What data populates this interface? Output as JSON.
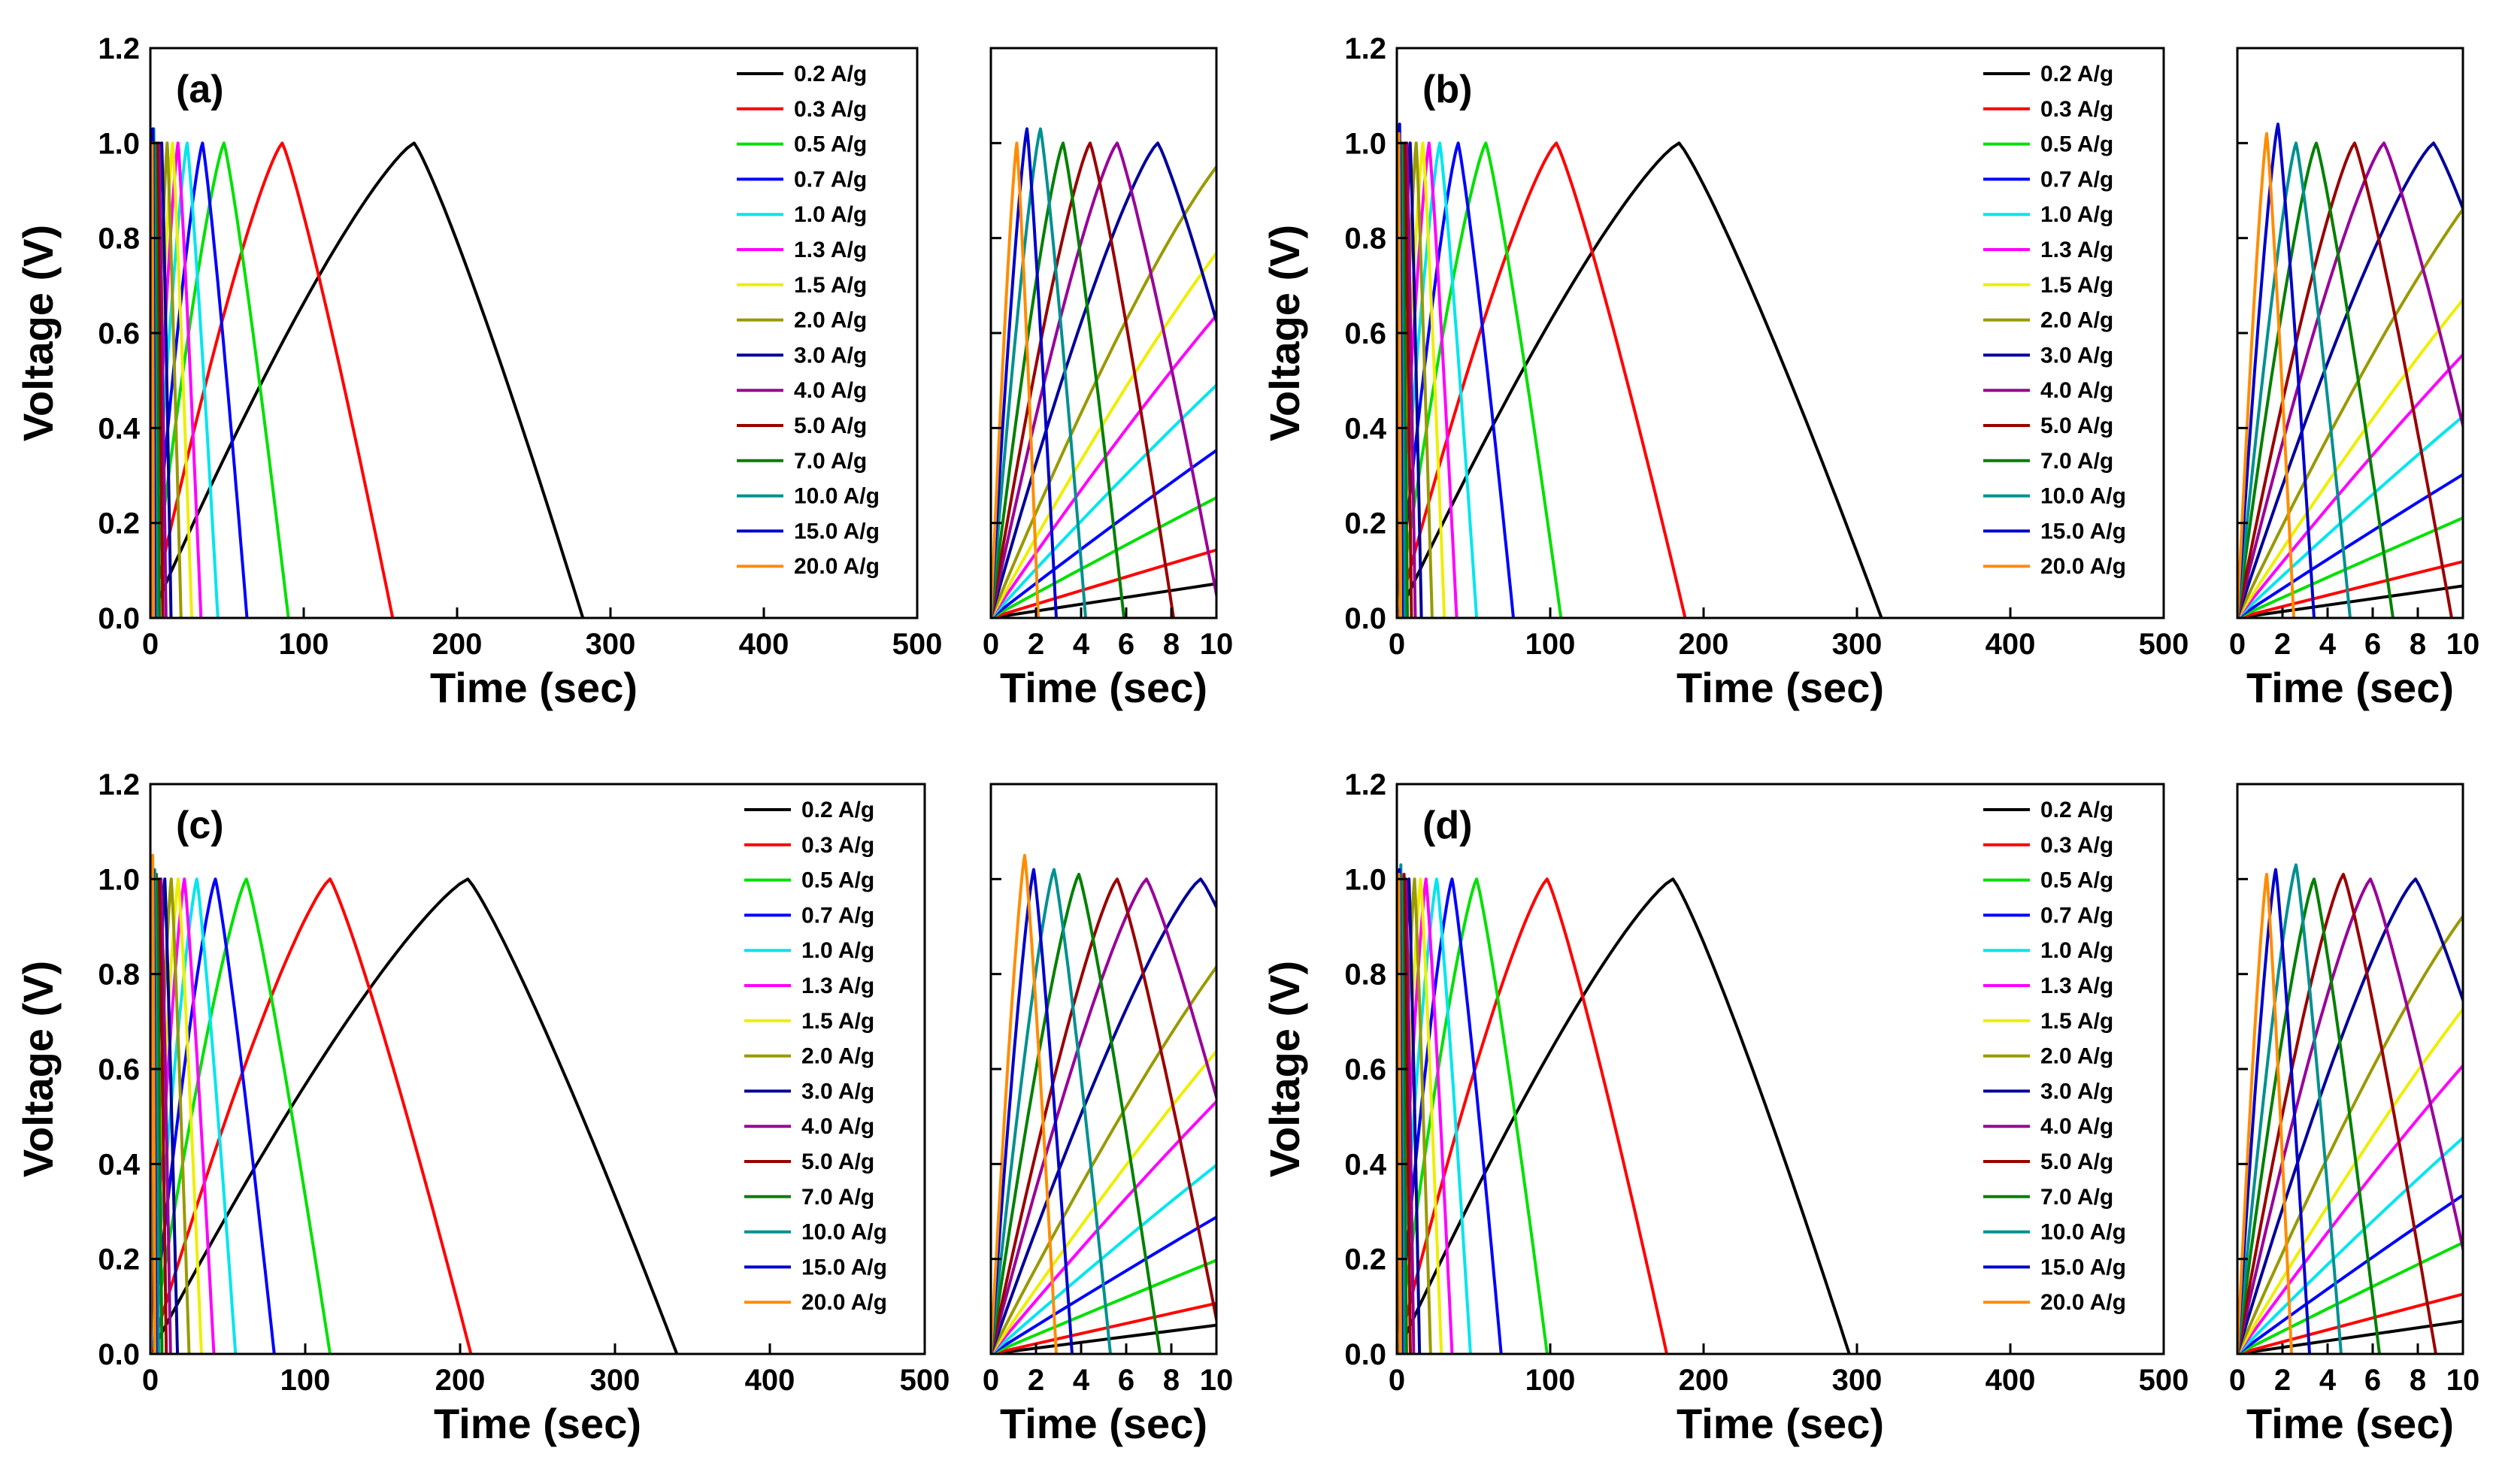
{
  "chart_data": {
    "type": "line",
    "rates": [
      "0.2 A/g",
      "0.3 A/g",
      "0.5 A/g",
      "0.7 A/g",
      "1.0 A/g",
      "1.3 A/g",
      "1.5 A/g",
      "2.0 A/g",
      "3.0 A/g",
      "4.0 A/g",
      "5.0 A/g",
      "7.0 A/g",
      "10.0 A/g",
      "15.0 A/g",
      "20.0 A/g"
    ],
    "colors": [
      "#000000",
      "#ff0000",
      "#00e000",
      "#0000ff",
      "#00e5ee",
      "#ff00ff",
      "#eeee00",
      "#999900",
      "#000099",
      "#990099",
      "#990000",
      "#008000",
      "#009090",
      "#0000cc",
      "#ff8c00"
    ],
    "main_axes": {
      "xlabel": "Time (sec)",
      "ylabel": "Voltage (V)",
      "xlim": [
        0,
        500
      ],
      "ylim": [
        0,
        1.2
      ],
      "xticks": [
        "0",
        "100",
        "200",
        "300",
        "400",
        "500"
      ],
      "yticks": [
        "0.0",
        "0.2",
        "0.4",
        "0.6",
        "0.8",
        "1.0",
        "1.2"
      ]
    },
    "inset_axes": {
      "xlabel": "Time (sec)",
      "xlim": [
        0,
        10
      ],
      "ylim": [
        0,
        1.2
      ],
      "xticks": [
        "0",
        "2",
        "4",
        "6",
        "8",
        "10"
      ]
    },
    "panels": [
      {
        "label": "(a)",
        "series": [
          {
            "name": "0.2 A/g",
            "peak_time": 172,
            "end_time": 282,
            "peak_voltage": 1.0
          },
          {
            "name": "0.3 A/g",
            "peak_time": 86,
            "end_time": 158,
            "peak_voltage": 1.0
          },
          {
            "name": "0.5 A/g",
            "peak_time": 48,
            "end_time": 90,
            "peak_voltage": 1.0
          },
          {
            "name": "0.7 A/g",
            "peak_time": 34,
            "end_time": 63,
            "peak_voltage": 1.0
          },
          {
            "name": "1.0 A/g",
            "peak_time": 24,
            "end_time": 44,
            "peak_voltage": 1.0
          },
          {
            "name": "1.3 A/g",
            "peak_time": 18,
            "end_time": 33,
            "peak_voltage": 1.0
          },
          {
            "name": "1.5 A/g",
            "peak_time": 14.5,
            "end_time": 27,
            "peak_voltage": 1.0
          },
          {
            "name": "2.0 A/g",
            "peak_time": 11,
            "end_time": 20,
            "peak_voltage": 1.0
          },
          {
            "name": "3.0 A/g",
            "peak_time": 7.4,
            "end_time": 13.5,
            "peak_voltage": 1.0
          },
          {
            "name": "4.0 A/g",
            "peak_time": 5.6,
            "end_time": 10.2,
            "peak_voltage": 1.0
          },
          {
            "name": "5.0 A/g",
            "peak_time": 4.4,
            "end_time": 8.1,
            "peak_voltage": 1.0
          },
          {
            "name": "7.0 A/g",
            "peak_time": 3.2,
            "end_time": 5.9,
            "peak_voltage": 1.0
          },
          {
            "name": "10.0 A/g",
            "peak_time": 2.2,
            "end_time": 4.2,
            "peak_voltage": 1.03
          },
          {
            "name": "15.0 A/g",
            "peak_time": 1.6,
            "end_time": 2.9,
            "peak_voltage": 1.03
          },
          {
            "name": "20.0 A/g",
            "peak_time": 1.15,
            "end_time": 2.1,
            "peak_voltage": 1.0
          }
        ]
      },
      {
        "label": "(b)",
        "series": [
          {
            "name": "0.2 A/g",
            "peak_time": 184,
            "end_time": 316,
            "peak_voltage": 1.0
          },
          {
            "name": "0.3 A/g",
            "peak_time": 104,
            "end_time": 188,
            "peak_voltage": 1.0
          },
          {
            "name": "0.5 A/g",
            "peak_time": 58,
            "end_time": 107,
            "peak_voltage": 1.0
          },
          {
            "name": "0.7 A/g",
            "peak_time": 40,
            "end_time": 76,
            "peak_voltage": 1.0
          },
          {
            "name": "1.0 A/g",
            "peak_time": 28,
            "end_time": 52,
            "peak_voltage": 1.0
          },
          {
            "name": "1.3 A/g",
            "peak_time": 21,
            "end_time": 39,
            "peak_voltage": 1.0
          },
          {
            "name": "1.5 A/g",
            "peak_time": 17,
            "end_time": 31,
            "peak_voltage": 1.0
          },
          {
            "name": "2.0 A/g",
            "peak_time": 12.6,
            "end_time": 23,
            "peak_voltage": 1.0
          },
          {
            "name": "3.0 A/g",
            "peak_time": 8.7,
            "end_time": 16,
            "peak_voltage": 1.0
          },
          {
            "name": "4.0 A/g",
            "peak_time": 6.5,
            "end_time": 12,
            "peak_voltage": 1.0
          },
          {
            "name": "5.0 A/g",
            "peak_time": 5.2,
            "end_time": 9.5,
            "peak_voltage": 1.0
          },
          {
            "name": "7.0 A/g",
            "peak_time": 3.5,
            "end_time": 6.9,
            "peak_voltage": 1.0
          },
          {
            "name": "10.0 A/g",
            "peak_time": 2.6,
            "end_time": 5.0,
            "peak_voltage": 1.0
          },
          {
            "name": "15.0 A/g",
            "peak_time": 1.8,
            "end_time": 3.4,
            "peak_voltage": 1.04
          },
          {
            "name": "20.0 A/g",
            "peak_time": 1.3,
            "end_time": 2.5,
            "peak_voltage": 1.02
          }
        ]
      },
      {
        "label": "(c)",
        "series": [
          {
            "name": "0.2 A/g",
            "peak_time": 205,
            "end_time": 340,
            "peak_voltage": 1.0
          },
          {
            "name": "0.3 A/g",
            "peak_time": 116,
            "end_time": 207,
            "peak_voltage": 1.0
          },
          {
            "name": "0.5 A/g",
            "peak_time": 62,
            "end_time": 116,
            "peak_voltage": 1.0
          },
          {
            "name": "0.7 A/g",
            "peak_time": 42,
            "end_time": 80,
            "peak_voltage": 1.0
          },
          {
            "name": "1.0 A/g",
            "peak_time": 30,
            "end_time": 55,
            "peak_voltage": 1.0
          },
          {
            "name": "1.3 A/g",
            "peak_time": 22,
            "end_time": 41,
            "peak_voltage": 1.0
          },
          {
            "name": "1.5 A/g",
            "peak_time": 18,
            "end_time": 33,
            "peak_voltage": 1.0
          },
          {
            "name": "2.0 A/g",
            "peak_time": 13.5,
            "end_time": 25,
            "peak_voltage": 1.0
          },
          {
            "name": "3.0 A/g",
            "peak_time": 9.3,
            "end_time": 17.5,
            "peak_voltage": 1.0
          },
          {
            "name": "4.0 A/g",
            "peak_time": 6.9,
            "end_time": 13,
            "peak_voltage": 1.0
          },
          {
            "name": "5.0 A/g",
            "peak_time": 5.6,
            "end_time": 10.3,
            "peak_voltage": 1.0
          },
          {
            "name": "7.0 A/g",
            "peak_time": 3.9,
            "end_time": 7.5,
            "peak_voltage": 1.01
          },
          {
            "name": "10.0 A/g",
            "peak_time": 2.8,
            "end_time": 5.3,
            "peak_voltage": 1.02
          },
          {
            "name": "15.0 A/g",
            "peak_time": 1.9,
            "end_time": 3.6,
            "peak_voltage": 1.02
          },
          {
            "name": "20.0 A/g",
            "peak_time": 1.5,
            "end_time": 2.9,
            "peak_voltage": 1.05
          }
        ]
      },
      {
        "label": "(d)",
        "series": [
          {
            "name": "0.2 A/g",
            "peak_time": 180,
            "end_time": 295,
            "peak_voltage": 1.0
          },
          {
            "name": "0.3 A/g",
            "peak_time": 98,
            "end_time": 176,
            "peak_voltage": 1.0
          },
          {
            "name": "0.5 A/g",
            "peak_time": 52,
            "end_time": 98,
            "peak_voltage": 1.0
          },
          {
            "name": "0.7 A/g",
            "peak_time": 36,
            "end_time": 68,
            "peak_voltage": 1.0
          },
          {
            "name": "1.0 A/g",
            "peak_time": 26,
            "end_time": 48,
            "peak_voltage": 1.0
          },
          {
            "name": "1.3 A/g",
            "peak_time": 19,
            "end_time": 36,
            "peak_voltage": 1.0
          },
          {
            "name": "1.5 A/g",
            "peak_time": 15.5,
            "end_time": 29,
            "peak_voltage": 1.0
          },
          {
            "name": "2.0 A/g",
            "peak_time": 11.5,
            "end_time": 22,
            "peak_voltage": 1.0
          },
          {
            "name": "3.0 A/g",
            "peak_time": 7.9,
            "end_time": 14.8,
            "peak_voltage": 1.0
          },
          {
            "name": "4.0 A/g",
            "peak_time": 5.9,
            "end_time": 11,
            "peak_voltage": 1.0
          },
          {
            "name": "5.0 A/g",
            "peak_time": 4.7,
            "end_time": 8.8,
            "peak_voltage": 1.01
          },
          {
            "name": "7.0 A/g",
            "peak_time": 3.4,
            "end_time": 6.3,
            "peak_voltage": 1.0
          },
          {
            "name": "10.0 A/g",
            "peak_time": 2.6,
            "end_time": 4.6,
            "peak_voltage": 1.03
          },
          {
            "name": "15.0 A/g",
            "peak_time": 1.7,
            "end_time": 3.2,
            "peak_voltage": 1.02
          },
          {
            "name": "20.0 A/g",
            "peak_time": 1.3,
            "end_time": 2.4,
            "peak_voltage": 1.01
          }
        ]
      }
    ]
  }
}
